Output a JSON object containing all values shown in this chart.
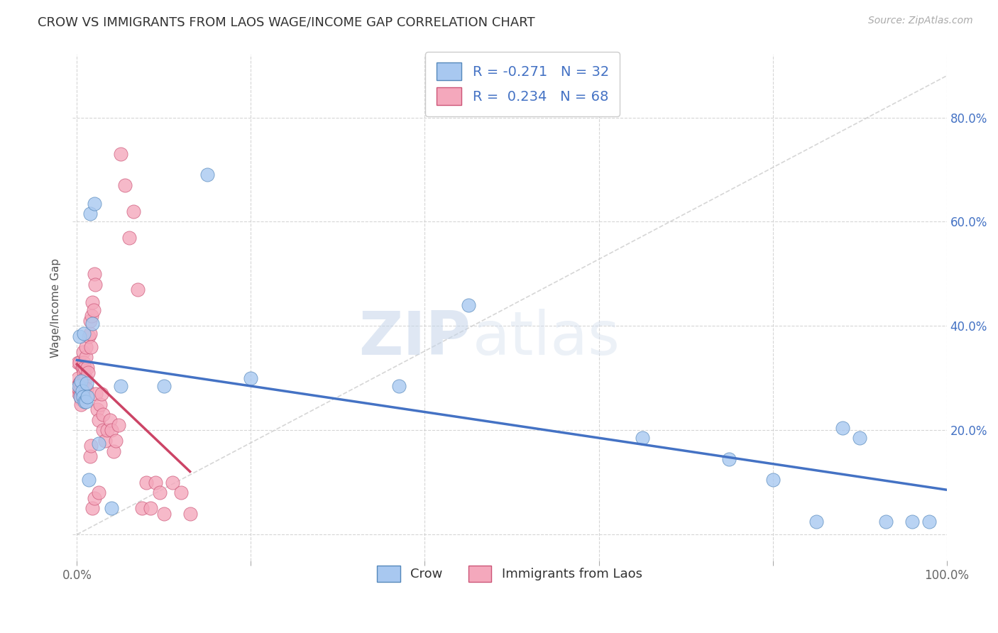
{
  "title": "CROW VS IMMIGRANTS FROM LAOS WAGE/INCOME GAP CORRELATION CHART",
  "source": "Source: ZipAtlas.com",
  "ylabel": "Wage/Income Gap",
  "xlim": [
    -0.005,
    1.0
  ],
  "ylim": [
    -0.05,
    0.92
  ],
  "x_ticks": [
    0.0,
    0.2,
    0.4,
    0.6,
    0.8,
    1.0
  ],
  "x_tick_labels": [
    "0.0%",
    "",
    "",
    "",
    "",
    "100.0%"
  ],
  "y_ticks": [
    0.0,
    0.2,
    0.4,
    0.6,
    0.8
  ],
  "y_tick_labels_right": [
    "",
    "20.0%",
    "40.0%",
    "60.0%",
    "80.0%"
  ],
  "crow_color": "#a8c8f0",
  "laos_color": "#f4a8bc",
  "crow_edge_color": "#5588bb",
  "laos_edge_color": "#cc5577",
  "crow_line_color": "#4472c4",
  "laos_line_color": "#cc4466",
  "crow_R": -0.271,
  "crow_N": 32,
  "laos_R": 0.234,
  "laos_N": 68,
  "bg_color": "#ffffff",
  "watermark_zip": "ZIP",
  "watermark_atlas": "atlas",
  "grid_color": "#cccccc",
  "diag_color": "#cccccc",
  "crow_x": [
    0.002,
    0.003,
    0.004,
    0.005,
    0.006,
    0.007,
    0.008,
    0.009,
    0.01,
    0.011,
    0.012,
    0.014,
    0.015,
    0.018,
    0.02,
    0.025,
    0.04,
    0.05,
    0.1,
    0.15,
    0.2,
    0.37,
    0.45,
    0.65,
    0.75,
    0.8,
    0.85,
    0.88,
    0.9,
    0.93,
    0.96,
    0.98
  ],
  "crow_y": [
    0.285,
    0.38,
    0.265,
    0.295,
    0.275,
    0.265,
    0.385,
    0.255,
    0.255,
    0.29,
    0.265,
    0.105,
    0.615,
    0.405,
    0.635,
    0.175,
    0.05,
    0.285,
    0.285,
    0.69,
    0.3,
    0.285,
    0.44,
    0.185,
    0.145,
    0.105,
    0.025,
    0.205,
    0.185,
    0.025,
    0.025,
    0.025
  ],
  "laos_x": [
    0.001,
    0.001,
    0.002,
    0.002,
    0.003,
    0.003,
    0.003,
    0.004,
    0.004,
    0.005,
    0.005,
    0.005,
    0.006,
    0.006,
    0.007,
    0.007,
    0.008,
    0.008,
    0.009,
    0.009,
    0.01,
    0.01,
    0.01,
    0.011,
    0.012,
    0.013,
    0.014,
    0.015,
    0.015,
    0.016,
    0.017,
    0.018,
    0.019,
    0.02,
    0.021,
    0.022,
    0.023,
    0.025,
    0.027,
    0.028,
    0.03,
    0.03,
    0.032,
    0.035,
    0.038,
    0.04,
    0.042,
    0.045,
    0.048,
    0.05,
    0.055,
    0.06,
    0.065,
    0.07,
    0.075,
    0.08,
    0.085,
    0.09,
    0.095,
    0.1,
    0.11,
    0.12,
    0.13,
    0.015,
    0.016,
    0.018,
    0.02,
    0.025
  ],
  "laos_y": [
    0.3,
    0.33,
    0.27,
    0.28,
    0.29,
    0.33,
    0.29,
    0.27,
    0.29,
    0.26,
    0.28,
    0.25,
    0.29,
    0.32,
    0.32,
    0.35,
    0.31,
    0.33,
    0.3,
    0.32,
    0.3,
    0.34,
    0.36,
    0.28,
    0.32,
    0.31,
    0.38,
    0.385,
    0.41,
    0.36,
    0.42,
    0.445,
    0.43,
    0.5,
    0.48,
    0.27,
    0.24,
    0.22,
    0.25,
    0.27,
    0.23,
    0.2,
    0.18,
    0.2,
    0.22,
    0.2,
    0.16,
    0.18,
    0.21,
    0.73,
    0.67,
    0.57,
    0.62,
    0.47,
    0.05,
    0.1,
    0.05,
    0.1,
    0.08,
    0.04,
    0.1,
    0.08,
    0.04,
    0.15,
    0.17,
    0.05,
    0.07,
    0.08
  ]
}
